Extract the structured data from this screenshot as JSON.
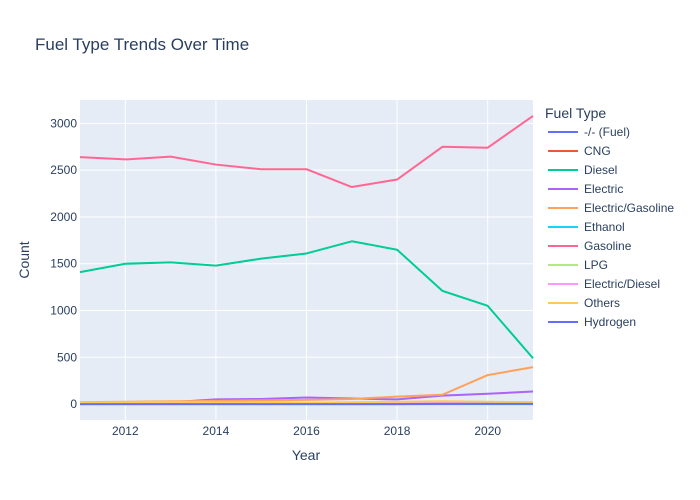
{
  "chart_data": {
    "type": "line",
    "title": "Fuel Type Trends Over Time",
    "xlabel": "Year",
    "ylabel": "Count",
    "xlim": [
      2011,
      2021
    ],
    "ylim": [
      -170,
      3250
    ],
    "x_ticks": [
      2012,
      2014,
      2016,
      2018,
      2020
    ],
    "y_ticks": [
      0,
      500,
      1000,
      1500,
      2000,
      2500,
      3000
    ],
    "grid": true,
    "legend_title": "Fuel Type",
    "legend_position": "right",
    "x": [
      2011,
      2012,
      2013,
      2014,
      2015,
      2016,
      2017,
      2018,
      2019,
      2020,
      2021
    ],
    "series": [
      {
        "name": "-/- (Fuel)",
        "color": "#636efa",
        "values": [
          5,
          5,
          5,
          5,
          5,
          5,
          5,
          5,
          5,
          5,
          5
        ]
      },
      {
        "name": "CNG",
        "color": "#ef553b",
        "values": [
          10,
          12,
          15,
          12,
          10,
          8,
          6,
          5,
          4,
          3,
          2
        ]
      },
      {
        "name": "Diesel",
        "color": "#00cc96",
        "values": [
          1410,
          1500,
          1515,
          1480,
          1555,
          1610,
          1740,
          1650,
          1210,
          1050,
          490
        ]
      },
      {
        "name": "Electric",
        "color": "#ab63fa",
        "values": [
          0,
          10,
          20,
          50,
          55,
          70,
          60,
          50,
          90,
          110,
          135
        ]
      },
      {
        "name": "Electric/Gasoline",
        "color": "#ffa15a",
        "values": [
          20,
          25,
          30,
          35,
          40,
          45,
          55,
          80,
          100,
          310,
          395
        ]
      },
      {
        "name": "Ethanol",
        "color": "#19d3f3",
        "values": [
          0,
          0,
          0,
          0,
          0,
          0,
          0,
          0,
          0,
          0,
          0
        ]
      },
      {
        "name": "Gasoline",
        "color": "#ff6692",
        "values": [
          2640,
          2615,
          2645,
          2560,
          2510,
          2510,
          2320,
          2400,
          2750,
          2740,
          3080
        ]
      },
      {
        "name": "LPG",
        "color": "#b6e880",
        "values": [
          5,
          5,
          5,
          5,
          5,
          5,
          5,
          5,
          5,
          5,
          5
        ]
      },
      {
        "name": "Electric/Diesel",
        "color": "#ff97ff",
        "values": [
          0,
          0,
          5,
          5,
          10,
          10,
          15,
          15,
          20,
          20,
          20
        ]
      },
      {
        "name": "Others",
        "color": "#fecb52",
        "values": [
          15,
          20,
          25,
          20,
          20,
          15,
          20,
          25,
          30,
          25,
          20
        ]
      },
      {
        "name": "Hydrogen",
        "color": "#636efa",
        "values": [
          0,
          0,
          0,
          0,
          0,
          0,
          0,
          0,
          2,
          2,
          2
        ]
      }
    ]
  }
}
